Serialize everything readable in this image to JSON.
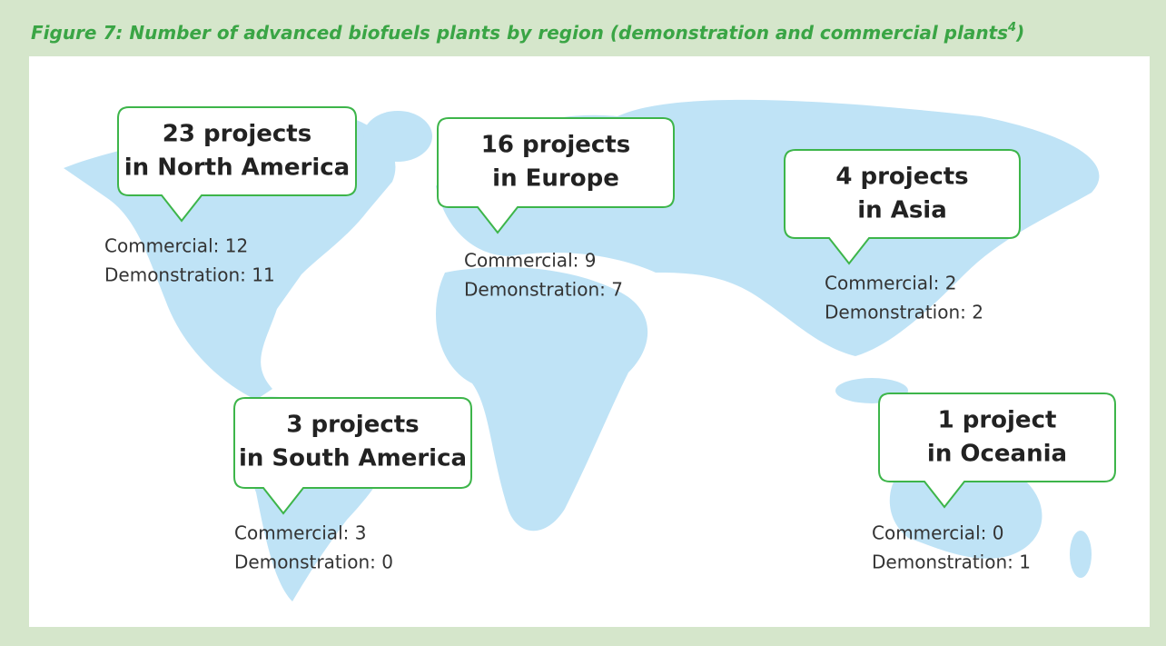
{
  "title": {
    "text": "Figure 7: Number of advanced biofuels plants by region (demonstration and commercial plants",
    "footnote": "4",
    "close": ")"
  },
  "regions": [
    {
      "callout": [
        "23 projects",
        "in North America"
      ],
      "commercial": "Commercial: 12",
      "demonstration": "Demonstration: 11"
    },
    {
      "callout": [
        "16 projects",
        "in Europe"
      ],
      "commercial": "Commercial: 9",
      "demonstration": "Demonstration: 7"
    },
    {
      "callout": [
        "4 projects",
        "in Asia"
      ],
      "commercial": "Commercial: 2",
      "demonstration": "Demonstration: 2"
    },
    {
      "callout": [
        "3 projects",
        "in South America"
      ],
      "commercial": "Commercial: 3",
      "demonstration": "Demonstration: 0"
    },
    {
      "callout": [
        "1 project",
        "in Oceania"
      ],
      "commercial": "Commercial: 0",
      "demonstration": "Demonstration: 1"
    }
  ]
}
